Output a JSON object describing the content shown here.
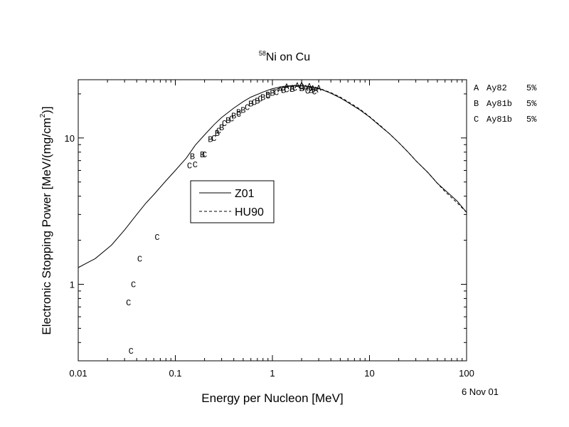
{
  "chart_data": {
    "type": "line",
    "title": {
      "superscript": "58",
      "text": "Ni on Cu"
    },
    "xlabel": "Energy per Nucleon [MeV]",
    "ylabel": "Electronic Stopping Power [MeV/(mg/cm",
    "ylabel_superscript": "2",
    "ylabel_end": ")]",
    "x_scale": "log",
    "y_scale": "log",
    "xlim": [
      0.01,
      100
    ],
    "ylim": [
      0.3,
      25
    ],
    "x_ticks": [
      {
        "value": 0.01,
        "label": "0.01"
      },
      {
        "value": 0.1,
        "label": "0.1"
      },
      {
        "value": 1,
        "label": "1"
      },
      {
        "value": 10,
        "label": "10"
      },
      {
        "value": 100,
        "label": "100"
      }
    ],
    "y_ticks": [
      {
        "value": 1,
        "label": "1"
      },
      {
        "value": 10,
        "label": "10"
      }
    ],
    "date_note": "6 Nov 01",
    "legend": {
      "placement": "center-left",
      "entries": [
        {
          "label": "Z01",
          "style": "solid"
        },
        {
          "label": "HU90",
          "style": "dashed"
        }
      ]
    },
    "side_legend": [
      {
        "marker": "A",
        "label": "Ay82",
        "error": "5%"
      },
      {
        "marker": "B",
        "label": "Ay81b",
        "error": "5%"
      },
      {
        "marker": "C",
        "label": "Ay81b",
        "error": "5%"
      }
    ],
    "series": [
      {
        "name": "Z01",
        "style": "solid",
        "x": [
          0.01,
          0.015,
          0.022,
          0.03,
          0.04,
          0.05,
          0.06,
          0.08,
          0.1,
          0.13,
          0.16,
          0.2,
          0.25,
          0.3,
          0.4,
          0.5,
          0.6,
          0.8,
          1,
          1.3,
          1.6,
          2,
          2.5,
          3,
          4,
          5,
          6,
          8,
          10,
          13,
          16,
          20,
          25,
          30,
          40,
          50,
          60,
          80,
          100
        ],
        "y": [
          1.3,
          1.5,
          1.85,
          2.35,
          3.0,
          3.6,
          4.1,
          5.1,
          6.0,
          7.3,
          8.9,
          10.5,
          12.3,
          13.8,
          16.0,
          17.7,
          19.0,
          20.6,
          21.7,
          22.5,
          22.8,
          22.8,
          22.4,
          21.8,
          20.2,
          18.8,
          17.5,
          15.5,
          13.9,
          12.0,
          10.7,
          9.3,
          8.0,
          7.0,
          5.8,
          4.9,
          4.4,
          3.7,
          3.1
        ]
      },
      {
        "name": "HU90",
        "style": "dashed",
        "x": [
          1,
          1.3,
          1.6,
          2,
          2.5,
          3,
          4,
          5,
          6,
          8,
          10,
          13,
          16,
          20,
          25,
          30,
          40,
          50,
          60,
          80,
          100
        ],
        "y": [
          21.2,
          22.2,
          22.6,
          22.7,
          22.4,
          21.9,
          20.4,
          19.0,
          17.7,
          15.7,
          14.0,
          12.1,
          10.7,
          9.3,
          8.0,
          7.0,
          5.8,
          4.9,
          4.3,
          3.6,
          3.1
        ]
      }
    ],
    "points": [
      {
        "m": "A",
        "x": 1.2,
        "y": 21.5
      },
      {
        "m": "A",
        "x": 1.4,
        "y": 22.5
      },
      {
        "m": "A",
        "x": 1.6,
        "y": 22.0
      },
      {
        "m": "A",
        "x": 1.8,
        "y": 22.8
      },
      {
        "m": "A",
        "x": 2.0,
        "y": 23.0
      },
      {
        "m": "A",
        "x": 2.2,
        "y": 22.0
      },
      {
        "m": "A",
        "x": 2.4,
        "y": 22.6
      },
      {
        "m": "A",
        "x": 2.6,
        "y": 21.8
      },
      {
        "m": "A",
        "x": 2.8,
        "y": 21.4
      },
      {
        "m": "A",
        "x": 3.0,
        "y": 22.0
      },
      {
        "m": "B",
        "x": 0.15,
        "y": 7.5
      },
      {
        "m": "B",
        "x": 0.19,
        "y": 7.7
      },
      {
        "m": "B",
        "x": 0.23,
        "y": 9.8
      },
      {
        "m": "B",
        "x": 0.27,
        "y": 10.8
      },
      {
        "m": "B",
        "x": 0.3,
        "y": 11.8
      },
      {
        "m": "B",
        "x": 0.35,
        "y": 13.2
      },
      {
        "m": "B",
        "x": 0.4,
        "y": 14.2
      },
      {
        "m": "B",
        "x": 0.45,
        "y": 15.0
      },
      {
        "m": "B",
        "x": 0.5,
        "y": 15.5
      },
      {
        "m": "B",
        "x": 0.6,
        "y": 17.2
      },
      {
        "m": "B",
        "x": 0.7,
        "y": 18.0
      },
      {
        "m": "B",
        "x": 0.8,
        "y": 19.0
      },
      {
        "m": "B",
        "x": 0.9,
        "y": 19.8
      },
      {
        "m": "B",
        "x": 1.0,
        "y": 20.3
      },
      {
        "m": "B",
        "x": 1.3,
        "y": 21.2
      },
      {
        "m": "B",
        "x": 1.6,
        "y": 21.6
      },
      {
        "m": "B",
        "x": 2.0,
        "y": 21.8
      },
      {
        "m": "B",
        "x": 2.5,
        "y": 21.2
      },
      {
        "m": "C",
        "x": 0.035,
        "y": 0.35
      },
      {
        "m": "C",
        "x": 0.033,
        "y": 0.75
      },
      {
        "m": "C",
        "x": 0.037,
        "y": 1.0
      },
      {
        "m": "C",
        "x": 0.043,
        "y": 1.5
      },
      {
        "m": "C",
        "x": 0.065,
        "y": 2.1
      },
      {
        "m": "C",
        "x": 0.14,
        "y": 6.5
      },
      {
        "m": "C",
        "x": 0.16,
        "y": 6.6
      },
      {
        "m": "C",
        "x": 0.2,
        "y": 7.7
      },
      {
        "m": "C",
        "x": 0.25,
        "y": 10.0
      },
      {
        "m": "C",
        "x": 0.28,
        "y": 11.2
      },
      {
        "m": "C",
        "x": 0.32,
        "y": 12.6
      },
      {
        "m": "C",
        "x": 0.38,
        "y": 13.6
      },
      {
        "m": "C",
        "x": 0.45,
        "y": 14.6
      },
      {
        "m": "C",
        "x": 0.55,
        "y": 16.2
      },
      {
        "m": "C",
        "x": 0.65,
        "y": 17.6
      },
      {
        "m": "C",
        "x": 0.75,
        "y": 18.6
      },
      {
        "m": "C",
        "x": 0.9,
        "y": 19.4
      },
      {
        "m": "C",
        "x": 1.1,
        "y": 20.5
      },
      {
        "m": "C",
        "x": 1.4,
        "y": 21.5
      },
      {
        "m": "C",
        "x": 1.7,
        "y": 22.0
      },
      {
        "m": "C",
        "x": 2.0,
        "y": 22.5
      },
      {
        "m": "C",
        "x": 2.3,
        "y": 21.0
      },
      {
        "m": "C",
        "x": 2.7,
        "y": 20.8
      }
    ]
  }
}
